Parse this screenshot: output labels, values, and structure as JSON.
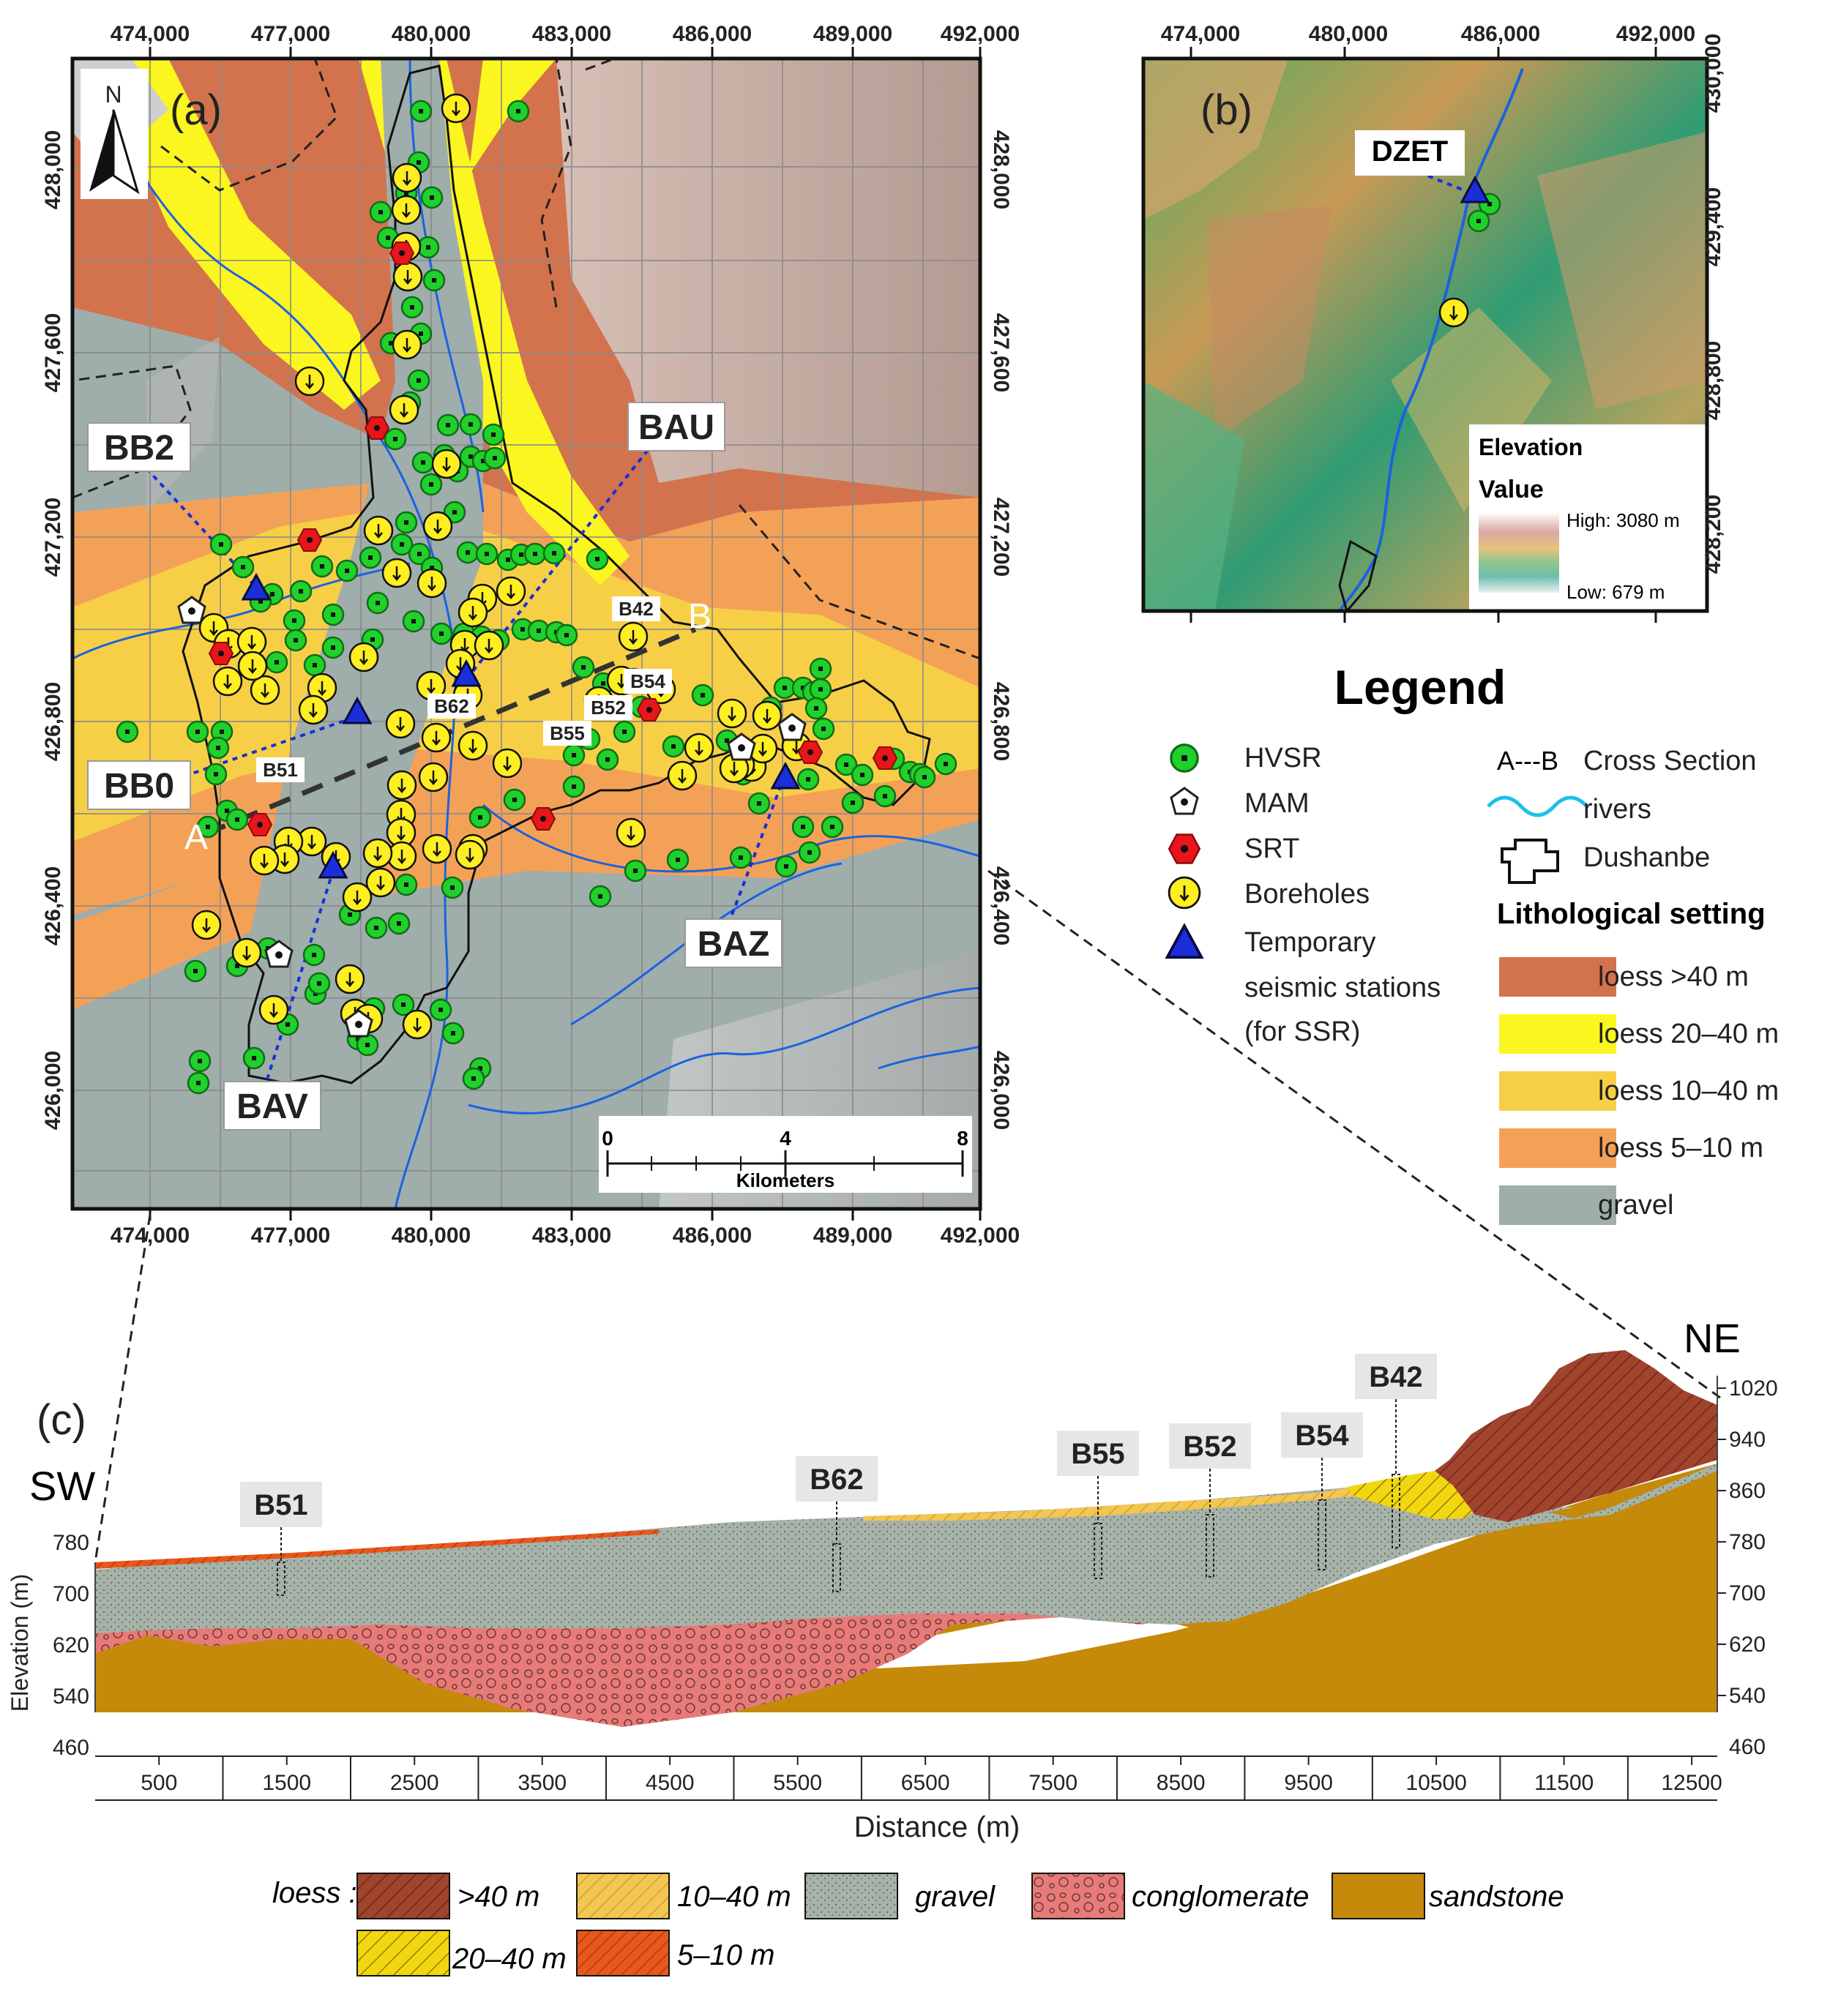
{
  "panel_a": {
    "label": "(a)",
    "north": "N",
    "x_ticks": [
      "474,000",
      "477,000",
      "480,000",
      "483,000",
      "486,000",
      "489,000",
      "492,000"
    ],
    "y_ticks": [
      "428,000",
      "427,600",
      "427,200",
      "426,800",
      "426,400",
      "426,000"
    ],
    "stations": [
      "BB2",
      "BAU",
      "BB0",
      "BAZ",
      "BAV"
    ],
    "section_ends": [
      "A",
      "B"
    ],
    "boreholes": [
      "B42",
      "B54",
      "B52",
      "B55",
      "B62",
      "B51"
    ],
    "scale": {
      "ticks": [
        "0",
        "4",
        "8"
      ],
      "unit": "Kilometers"
    }
  },
  "panel_b": {
    "label": "(b)",
    "x_ticks": [
      "474,000",
      "480,000",
      "486,000",
      "492,000"
    ],
    "y_ticks": [
      "430,000",
      "429,400",
      "428,800",
      "428,200"
    ],
    "station": "DZET",
    "legend": {
      "title": "Elevation",
      "subtitle": "Value",
      "high": "High: 3080 m",
      "low": "Low: 679 m"
    }
  },
  "legend": {
    "title": "Legend",
    "symbols": [
      {
        "name": "HVSR",
        "color": "#1fd12a"
      },
      {
        "name": "MAM",
        "color": "#ffffff"
      },
      {
        "name": "SRT",
        "color": "#e8151b"
      },
      {
        "name": "Boreholes",
        "color": "#ffee22"
      }
    ],
    "stations_lines": [
      "Temporary",
      "seismic stations",
      "(for SSR)"
    ],
    "cross_section": "Cross Section",
    "ab_glyph": "A---B",
    "rivers": "rivers",
    "dushanbe": "Dushanbe",
    "litho_title": "Lithological setting",
    "litho": [
      {
        "name": "loess >40 m",
        "color": "#d2734e"
      },
      {
        "name": "loess 20–40 m",
        "color": "#fbf61f"
      },
      {
        "name": "loess 10–40 m",
        "color": "#f7cf46"
      },
      {
        "name": "loess 5–10 m",
        "color": "#f7a04b"
      },
      {
        "name": "gravel",
        "color": "#9fadab"
      }
    ]
  },
  "panel_c": {
    "label": "(c)",
    "left_label": "SW",
    "right_label": "NE",
    "ylabel": "Elevation (m)",
    "xlabel": "Distance (m)",
    "left_ticks": [
      "780",
      "700",
      "620",
      "540",
      "460"
    ],
    "right_ticks": [
      "1020",
      "940",
      "860",
      "780",
      "700",
      "620",
      "540",
      "460"
    ],
    "x_ticks": [
      "500",
      "1500",
      "2500",
      "3500",
      "4500",
      "5500",
      "6500",
      "7500",
      "8500",
      "9500",
      "10500",
      "11500",
      "12500"
    ],
    "boreholes": [
      {
        "name": "B51",
        "distance": 1450
      },
      {
        "name": "B62",
        "distance": 5800
      },
      {
        "name": "B55",
        "distance": 7900
      },
      {
        "name": "B52",
        "distance": 8800
      },
      {
        "name": "B54",
        "distance": 9700
      },
      {
        "name": "B42",
        "distance": 10300
      }
    ],
    "legend": {
      "prefix": "loess :",
      "items": [
        {
          "name": ">40 m",
          "color": "#a0442d"
        },
        {
          "name": "10–40 m",
          "color": "#f2c653"
        },
        {
          "name": "gravel",
          "color": "#a7b2a9"
        },
        {
          "name": "conglomerate",
          "color": "#e87a78"
        },
        {
          "name": "sandstone",
          "color": "#c58a0a"
        },
        {
          "name": "20–40 m",
          "color": "#f1d70f"
        },
        {
          "name": "5–10 m",
          "color": "#e8571b"
        }
      ]
    }
  }
}
